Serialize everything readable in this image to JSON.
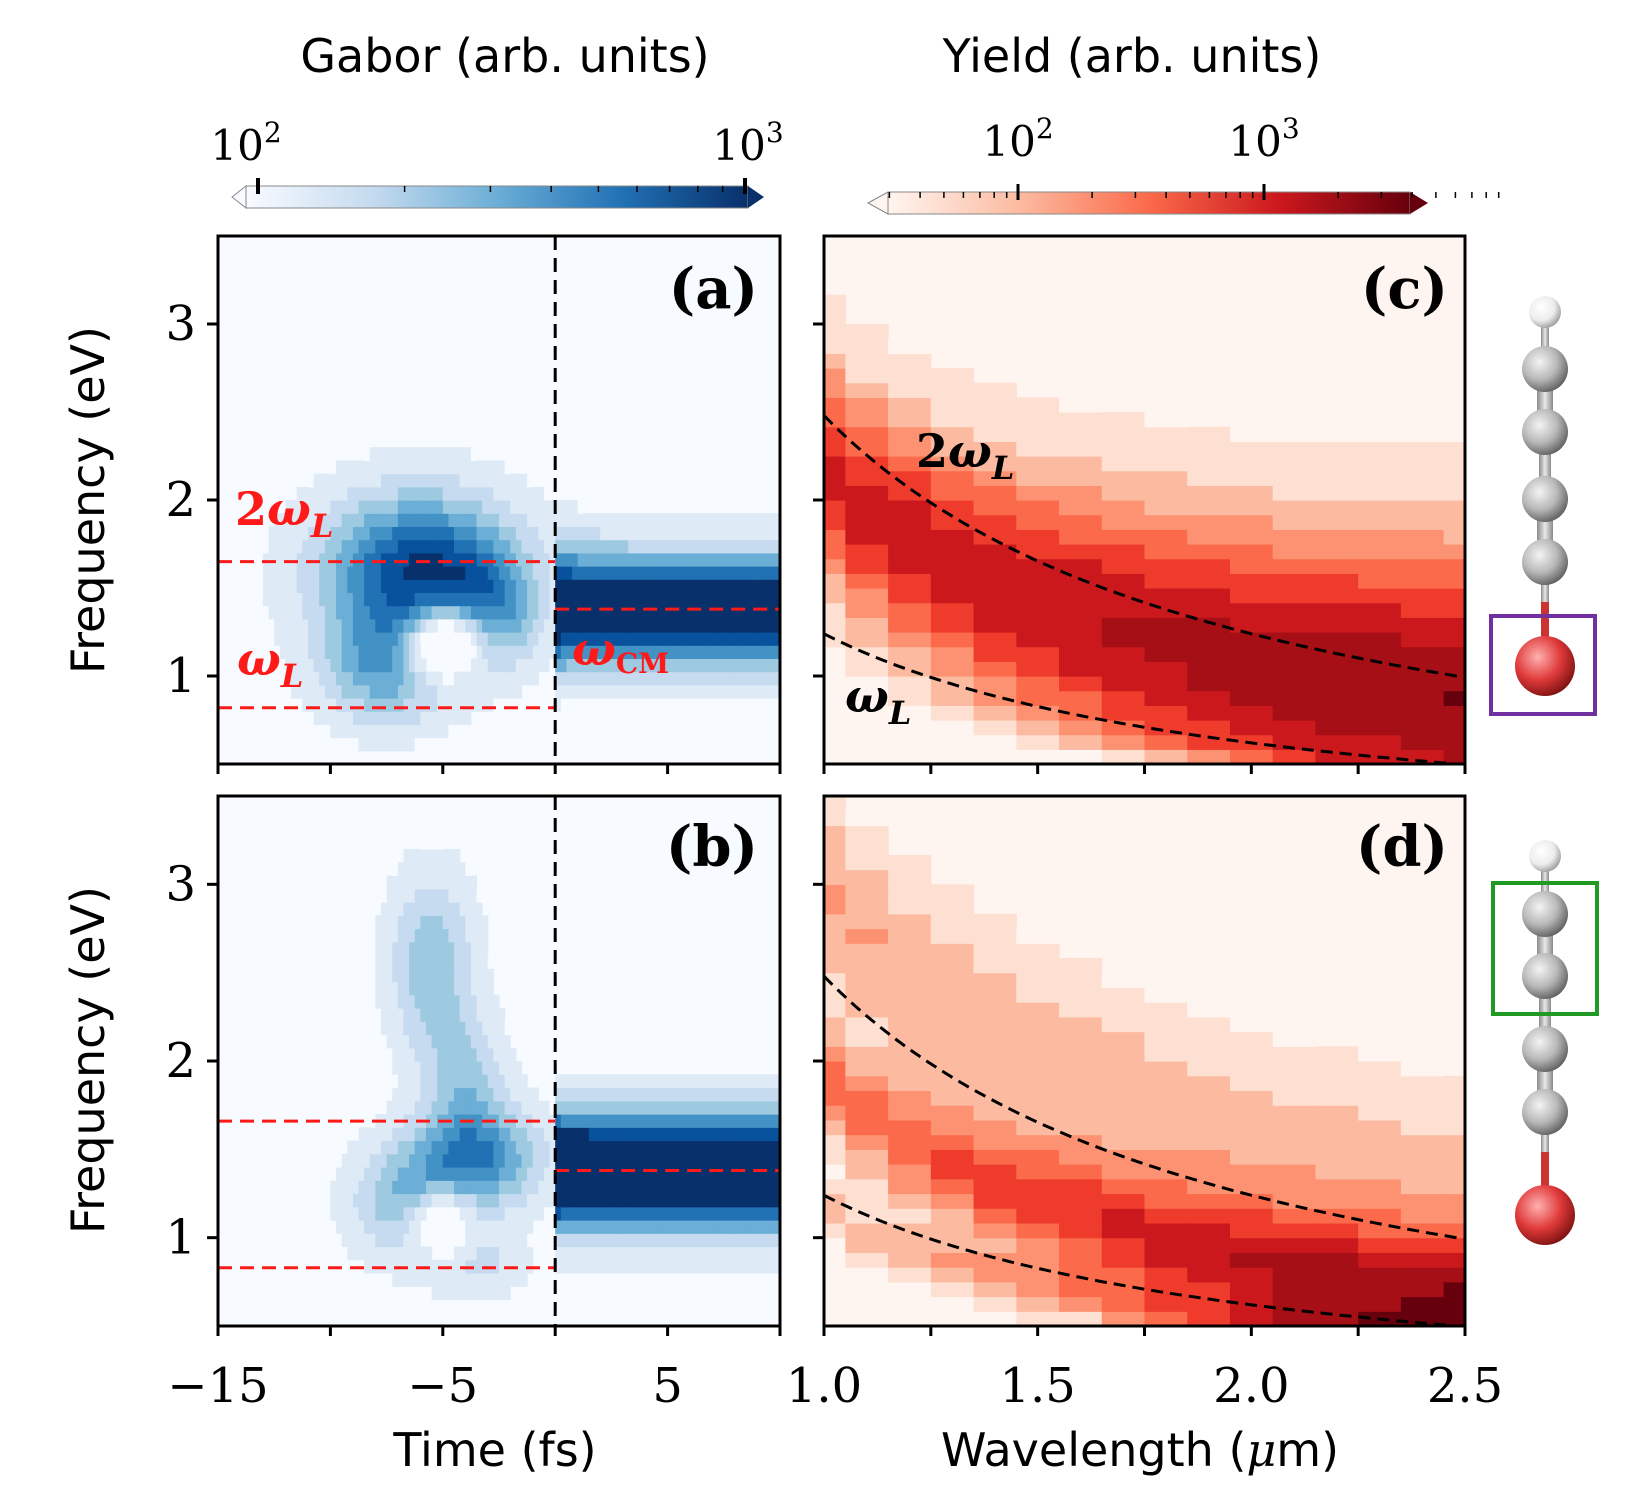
{
  "colorbars": {
    "gabor": {
      "label": "Gabor (arb. units)",
      "tick_labels": [
        "10^2",
        "10^3"
      ],
      "tick_values": [
        100,
        1000
      ],
      "colormap": "Blues",
      "extend": "both"
    },
    "yield": {
      "label": "Yield (arb. units)",
      "tick_labels": [
        "10^2",
        "10^3"
      ],
      "tick_values": [
        100,
        1000
      ],
      "colormap": "Reds",
      "extend": "both"
    }
  },
  "axes": {
    "time": {
      "label": "Time (fs)",
      "range": [
        -15,
        10
      ],
      "tick_labels": [
        "−15",
        "−5",
        "5"
      ],
      "tick_values": [
        -15,
        -5,
        5
      ]
    },
    "wavelength": {
      "label": "Wavelength (μm)",
      "range": [
        1.0,
        2.5
      ],
      "tick_labels": [
        "1.0",
        "1.5",
        "2.0",
        "2.5"
      ],
      "tick_values": [
        1.0,
        1.5,
        2.0,
        2.5
      ]
    },
    "frequency": {
      "label": "Frequency (eV)",
      "range": [
        0.5,
        3.5
      ],
      "tick_labels": [
        "1",
        "2",
        "3"
      ],
      "tick_values": [
        1,
        2,
        3
      ]
    }
  },
  "panels": {
    "a": {
      "label": "(a)",
      "annotations": {
        "two_omega": "2",
        "omega": "ω",
        "sub_L": "L",
        "omega_cm": "ω",
        "sub_cm": "CM"
      }
    },
    "b": {
      "label": "(b)"
    },
    "c": {
      "label": "(c)",
      "annotations": {
        "two_omega": "2",
        "omega": "ω",
        "sub_L": "L"
      }
    },
    "d": {
      "label": "(d)"
    }
  },
  "colors": {
    "red_guides": "#ff1a1a",
    "black_guides": "#000000",
    "frame_purple": "#7030a0",
    "frame_green": "#229922",
    "atom_carbon": "#a8a8a8",
    "atom_hydrogen": "#f2f2f2",
    "atom_oxygen": "#dd3333"
  },
  "chart_data": [
    {
      "panel": "a",
      "type": "heatmap",
      "colormap": "Blues",
      "scale": "log",
      "xlabel": "Time (fs)",
      "ylabel": "Frequency (eV)",
      "xlim": [
        -15,
        10
      ],
      "ylim": [
        0.5,
        3.5
      ],
      "blobs": [
        {
          "t": -6.0,
          "f": 1.6,
          "st": 3.0,
          "sf": 0.3,
          "amp": 1.0
        },
        {
          "t": -7.5,
          "f": 1.05,
          "st": 2.0,
          "sf": 0.22,
          "amp": 0.55
        },
        {
          "t": -3.0,
          "f": 1.35,
          "st": 1.5,
          "sf": 0.22,
          "amp": 0.45
        }
      ],
      "holes": [
        {
          "t": -4.8,
          "f": 1.15,
          "st": 1.3,
          "sf": 0.16,
          "depth": 1.4
        }
      ],
      "band": {
        "t_start": 0,
        "f": 1.38,
        "sf": 0.22,
        "amp": 1.2
      },
      "vline_time": 0,
      "guides": [
        {
          "name": "2ω_L",
          "freq": 1.65,
          "t_range": [
            -15,
            0
          ]
        },
        {
          "name": "ω_L",
          "freq": 0.82,
          "t_range": [
            -15,
            0
          ]
        },
        {
          "name": "ω_CM",
          "freq": 1.38,
          "t_range": [
            0,
            10
          ]
        }
      ]
    },
    {
      "panel": "b",
      "type": "heatmap",
      "colormap": "Blues",
      "scale": "log",
      "xlabel": "Time (fs)",
      "ylabel": "Frequency (eV)",
      "xlim": [
        -15,
        10
      ],
      "ylim": [
        0.5,
        3.5
      ],
      "blobs": [
        {
          "t": -5.5,
          "f": 2.55,
          "st": 1.3,
          "sf": 0.35,
          "amp": 0.45
        },
        {
          "t": -4.0,
          "f": 1.9,
          "st": 1.2,
          "sf": 0.25,
          "amp": 0.35
        },
        {
          "t": -3.5,
          "f": 1.45,
          "st": 2.0,
          "sf": 0.2,
          "amp": 0.7
        },
        {
          "t": -6.5,
          "f": 1.2,
          "st": 1.8,
          "sf": 0.22,
          "amp": 0.45
        },
        {
          "t": -3.5,
          "f": 0.85,
          "st": 1.5,
          "sf": 0.12,
          "amp": 0.25
        }
      ],
      "holes": [
        {
          "t": -5.0,
          "f": 1.05,
          "st": 1.1,
          "sf": 0.15,
          "depth": 1.3
        }
      ],
      "band": {
        "t_start": 0,
        "f": 1.38,
        "sf": 0.22,
        "amp": 1.5
      },
      "vline_time": 0,
      "guides": [
        {
          "name": "2ω_L",
          "freq": 1.66,
          "t_range": [
            -15,
            0
          ]
        },
        {
          "name": "ω_L",
          "freq": 0.83,
          "t_range": [
            -15,
            0
          ]
        },
        {
          "name": "ω_CM",
          "freq": 1.38,
          "t_range": [
            0,
            10
          ]
        }
      ]
    },
    {
      "panel": "c",
      "type": "heatmap",
      "colormap": "Reds",
      "scale": "log",
      "xlabel": "Wavelength (μm)",
      "ylabel": "Frequency (eV)",
      "xlim": [
        1.0,
        2.5
      ],
      "ylim": [
        0.5,
        3.5
      ],
      "wavelength_columns": [
        1.0,
        1.1,
        1.2,
        1.3,
        1.4,
        1.5,
        1.6,
        1.7,
        1.8,
        1.9,
        2.0,
        2.1,
        2.2,
        2.3,
        2.4,
        2.5
      ],
      "column_width_um": 0.1,
      "curves": [
        {
          "name": "2ω_L",
          "formula_eV": "2.48/λ"
        },
        {
          "name": "ω_L",
          "formula_eV": "1.24/λ"
        }
      ],
      "notes": "Broad single band spanning from ω_L to above 2ω_L, peaking near the 2ω_L curve"
    },
    {
      "panel": "d",
      "type": "heatmap",
      "colormap": "Reds",
      "scale": "log",
      "xlabel": "Wavelength (μm)",
      "ylabel": "Frequency (eV)",
      "xlim": [
        1.0,
        2.5
      ],
      "ylim": [
        0.5,
        3.5
      ],
      "wavelength_columns": [
        1.0,
        1.1,
        1.2,
        1.3,
        1.4,
        1.5,
        1.6,
        1.7,
        1.8,
        1.9,
        2.0,
        2.1,
        2.2,
        2.3,
        2.4,
        2.5
      ],
      "column_width_um": 0.1,
      "curves": [
        {
          "name": "2ω_L",
          "formula_eV": "2.48/λ"
        },
        {
          "name": "ω_L",
          "formula_eV": "1.24/λ"
        }
      ],
      "notes": "Main band between ω_L and 2ω_L, faint band above 2ω_L, low-frequency band below ω_L"
    }
  ]
}
